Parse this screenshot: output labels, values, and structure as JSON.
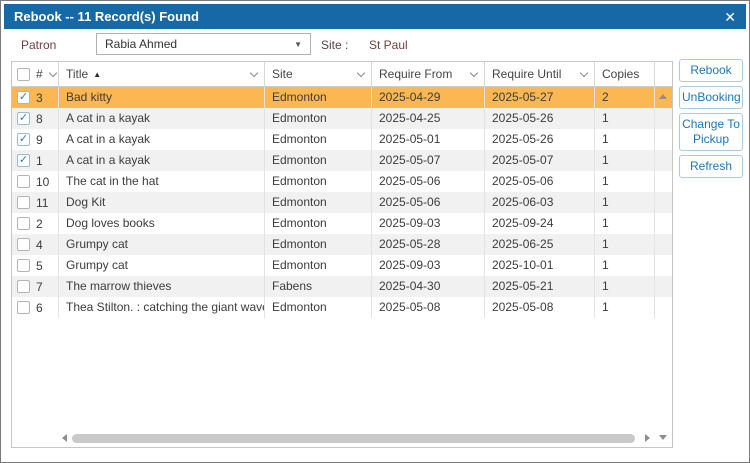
{
  "dialog": {
    "title": "Rebook -- 11 Record(s) Found"
  },
  "icons": {
    "close": "✕",
    "dropdown": "▼",
    "sort_asc": "▲",
    "check": "✓"
  },
  "filters": {
    "patron_label": "Patron",
    "patron_value": "Rabia Ahmed",
    "site_label": "Site :",
    "site_value": "St Paul"
  },
  "table": {
    "select_all_checked": false,
    "headers": {
      "num": "#",
      "title": "Title",
      "site": "Site",
      "require_from": "Require From",
      "require_until": "Require Until",
      "copies": "Copies"
    },
    "sorted_column": "Title",
    "sort_direction": "ascending",
    "rows": [
      {
        "checked": true,
        "selected": true,
        "num": "3",
        "title": "Bad kitty",
        "site": "Edmonton",
        "require_from": "2025-04-29",
        "require_until": "2025-05-27",
        "copies": "2"
      },
      {
        "checked": true,
        "selected": false,
        "num": "8",
        "title": "A cat in a kayak",
        "site": "Edmonton",
        "require_from": "2025-04-25",
        "require_until": "2025-05-26",
        "copies": "1"
      },
      {
        "checked": true,
        "selected": false,
        "num": "9",
        "title": "A cat in a kayak",
        "site": "Edmonton",
        "require_from": "2025-05-01",
        "require_until": "2025-05-26",
        "copies": "1"
      },
      {
        "checked": true,
        "selected": false,
        "num": "1",
        "title": "A cat in a kayak",
        "site": "Edmonton",
        "require_from": "2025-05-07",
        "require_until": "2025-05-07",
        "copies": "1"
      },
      {
        "checked": false,
        "selected": false,
        "num": "10",
        "title": "The cat in the hat",
        "site": "Edmonton",
        "require_from": "2025-05-06",
        "require_until": "2025-05-06",
        "copies": "1"
      },
      {
        "checked": false,
        "selected": false,
        "num": "11",
        "title": "Dog Kit",
        "site": "Edmonton",
        "require_from": "2025-05-06",
        "require_until": "2025-06-03",
        "copies": "1"
      },
      {
        "checked": false,
        "selected": false,
        "num": "2",
        "title": "Dog loves books",
        "site": "Edmonton",
        "require_from": "2025-09-03",
        "require_until": "2025-09-24",
        "copies": "1"
      },
      {
        "checked": false,
        "selected": false,
        "num": "4",
        "title": "Grumpy cat",
        "site": "Edmonton",
        "require_from": "2025-05-28",
        "require_until": "2025-06-25",
        "copies": "1"
      },
      {
        "checked": false,
        "selected": false,
        "num": "5",
        "title": "Grumpy cat",
        "site": "Edmonton",
        "require_from": "2025-09-03",
        "require_until": "2025-10-01",
        "copies": "1"
      },
      {
        "checked": false,
        "selected": false,
        "num": "7",
        "title": "The marrow thieves",
        "site": "Fabens",
        "require_from": "2025-04-30",
        "require_until": "2025-05-21",
        "copies": "1"
      },
      {
        "checked": false,
        "selected": false,
        "num": "6",
        "title": "Thea Stilton. : catching the giant wave /",
        "site": "Edmonton",
        "require_from": "2025-05-08",
        "require_until": "2025-05-08",
        "copies": "1"
      }
    ]
  },
  "buttons": {
    "rebook": "Rebook",
    "unbooking": "UnBooking",
    "change_to_pickup": "Change To Pickup",
    "refresh": "Refresh"
  },
  "colors": {
    "titlebar_blue": "#1769a6",
    "selection_orange": "#fbb751",
    "accent_blue": "#1c77b8",
    "label_maroon": "#6d4141",
    "zebra_gray": "#f1f1f1"
  }
}
